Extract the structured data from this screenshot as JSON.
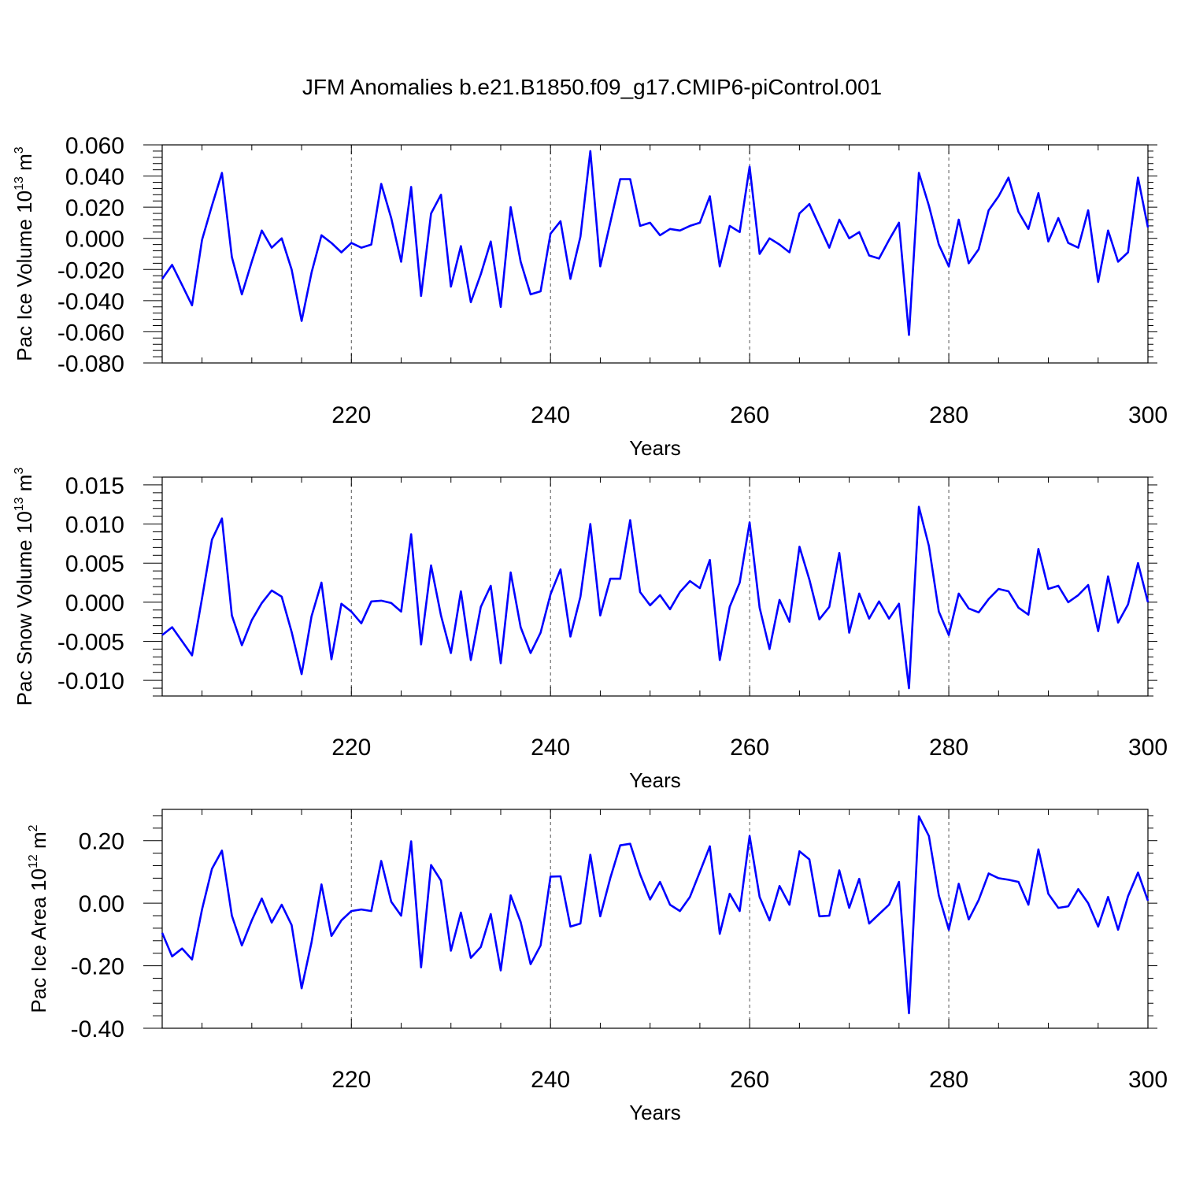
{
  "figure": {
    "title": "JFM Anomalies b.e21.B1850.f09_g17.CMIP6-piControl.001",
    "series_color": "#0000ff"
  },
  "chart_data": [
    {
      "type": "line",
      "name": "pac-ice-volume",
      "ylabel": "Pac Ice Volume 10",
      "ylabel_sup": "13",
      "ylabel_unit": " m",
      "ylabel_unit_sup": "3",
      "xlabel": "Years",
      "xlim": [
        201,
        300
      ],
      "ylim": [
        -0.08,
        0.06
      ],
      "x_ticks": [
        220,
        240,
        260,
        280,
        300
      ],
      "x_tick_labels": [
        "220",
        "240",
        "260",
        "280",
        "300"
      ],
      "y_ticks": [
        0.06,
        0.04,
        0.02,
        0.0,
        -0.02,
        -0.04,
        -0.06,
        -0.08
      ],
      "y_tick_labels": [
        "0.060",
        "0.040",
        "0.020",
        "0.000",
        "-0.020",
        "-0.040",
        "-0.060",
        "-0.080"
      ],
      "x_start": 201,
      "values": [
        -0.026,
        -0.017,
        -0.03,
        -0.043,
        -0.001,
        0.021,
        0.042,
        -0.012,
        -0.036,
        -0.015,
        0.005,
        -0.006,
        0.0,
        -0.02,
        -0.053,
        -0.022,
        0.002,
        -0.003,
        -0.009,
        -0.003,
        -0.006,
        -0.004,
        0.035,
        0.013,
        -0.015,
        0.033,
        -0.037,
        0.016,
        0.028,
        -0.031,
        -0.005,
        -0.041,
        -0.023,
        -0.002,
        -0.044,
        0.02,
        -0.015,
        -0.036,
        -0.034,
        0.003,
        0.011,
        -0.026,
        0.001,
        0.056,
        -0.018,
        0.01,
        0.038,
        0.038,
        0.008,
        0.01,
        0.002,
        0.006,
        0.005,
        0.008,
        0.01,
        0.027,
        -0.018,
        0.008,
        0.004,
        0.046,
        -0.01,
        0.0,
        -0.004,
        -0.009,
        0.016,
        0.022,
        0.008,
        -0.006,
        0.012,
        0.0,
        0.004,
        -0.011,
        -0.013,
        -0.001,
        0.01,
        -0.062,
        0.042,
        0.021,
        -0.004,
        -0.018,
        0.012,
        -0.016,
        -0.007,
        0.018,
        0.027,
        0.039,
        0.017,
        0.006,
        0.029,
        -0.002,
        0.013,
        -0.003,
        -0.006,
        0.018,
        -0.028,
        0.005,
        -0.015,
        -0.009,
        0.039,
        0.007
      ]
    },
    {
      "type": "line",
      "name": "pac-snow-volume",
      "ylabel": "Pac Snow Volume 10",
      "ylabel_sup": "13",
      "ylabel_unit": " m",
      "ylabel_unit_sup": "3",
      "xlabel": "Years",
      "xlim": [
        201,
        300
      ],
      "ylim": [
        -0.012,
        0.016
      ],
      "x_ticks": [
        220,
        240,
        260,
        280,
        300
      ],
      "x_tick_labels": [
        "220",
        "240",
        "260",
        "280",
        "300"
      ],
      "y_ticks": [
        0.015,
        0.01,
        0.005,
        0.0,
        -0.005,
        -0.01
      ],
      "y_tick_labels": [
        "0.015",
        "0.010",
        "0.005",
        "0.000",
        "-0.005",
        "-0.010"
      ],
      "x_start": 201,
      "values": [
        -0.0042,
        -0.0032,
        -0.005,
        -0.0068,
        0.0005,
        0.008,
        0.0107,
        -0.0017,
        -0.0055,
        -0.0023,
        -0.0001,
        0.0015,
        0.0007,
        -0.0038,
        -0.0092,
        -0.0018,
        0.0025,
        -0.0073,
        -0.0002,
        -0.0012,
        -0.0027,
        0.0001,
        0.0002,
        -0.0001,
        -0.0012,
        0.0087,
        -0.0054,
        0.0047,
        -0.0017,
        -0.0065,
        0.0014,
        -0.0074,
        -0.0006,
        0.0021,
        -0.0078,
        0.0038,
        -0.0032,
        -0.0065,
        -0.0039,
        0.001,
        0.0042,
        -0.0044,
        0.0007,
        0.01,
        -0.0017,
        0.003,
        0.003,
        0.0105,
        0.0013,
        -0.0004,
        0.0009,
        -0.0009,
        0.0013,
        0.0027,
        0.0018,
        0.0054,
        -0.0074,
        -0.0006,
        0.0025,
        0.0102,
        -0.0007,
        -0.006,
        0.0003,
        -0.0025,
        0.0071,
        0.0029,
        -0.0022,
        -0.0006,
        0.0063,
        -0.0039,
        0.0011,
        -0.0021,
        0.0001,
        -0.0021,
        -0.0002,
        -0.011,
        0.0122,
        0.0072,
        -0.0012,
        -0.0042,
        0.0011,
        -0.0008,
        -0.0013,
        0.0004,
        0.0017,
        0.0014,
        -0.0007,
        -0.0016,
        0.0068,
        0.0017,
        0.0021,
        0.0,
        0.0009,
        0.0022,
        -0.0037,
        0.0033,
        -0.0026,
        -0.0003,
        0.005,
        0.0
      ]
    },
    {
      "type": "line",
      "name": "pac-ice-area",
      "ylabel": "Pac Ice Area 10",
      "ylabel_sup": "12",
      "ylabel_unit": " m",
      "ylabel_unit_sup": "2",
      "xlabel": "Years",
      "xlim": [
        201,
        300
      ],
      "ylim": [
        -0.4,
        0.3
      ],
      "x_ticks": [
        220,
        240,
        260,
        280,
        300
      ],
      "x_tick_labels": [
        "220",
        "240",
        "260",
        "280",
        "300"
      ],
      "y_ticks": [
        0.2,
        0.0,
        -0.2,
        -0.4
      ],
      "y_tick_labels": [
        "0.20",
        "0.00",
        "-0.20",
        "-0.40"
      ],
      "x_start": 201,
      "values": [
        -0.095,
        -0.17,
        -0.145,
        -0.18,
        -0.02,
        0.11,
        0.168,
        -0.04,
        -0.135,
        -0.055,
        0.015,
        -0.062,
        -0.005,
        -0.07,
        -0.272,
        -0.125,
        0.06,
        -0.105,
        -0.055,
        -0.025,
        -0.02,
        -0.025,
        0.135,
        0.005,
        -0.04,
        0.198,
        -0.205,
        0.122,
        0.072,
        -0.152,
        -0.03,
        -0.175,
        -0.14,
        -0.035,
        -0.215,
        0.025,
        -0.06,
        -0.195,
        -0.135,
        0.085,
        0.086,
        -0.075,
        -0.065,
        0.155,
        -0.042,
        0.08,
        0.185,
        0.19,
        0.092,
        0.012,
        0.068,
        -0.005,
        -0.025,
        0.02,
        0.1,
        0.182,
        -0.098,
        0.03,
        -0.025,
        0.215,
        0.02,
        -0.055,
        0.055,
        -0.005,
        0.166,
        0.14,
        -0.042,
        -0.04,
        0.105,
        -0.015,
        0.078,
        -0.065,
        -0.035,
        -0.005,
        0.068,
        -0.352,
        0.278,
        0.215,
        0.025,
        -0.085,
        0.062,
        -0.052,
        0.01,
        0.095,
        0.08,
        0.075,
        0.068,
        -0.005,
        0.172,
        0.03,
        -0.015,
        -0.01,
        0.045,
        0.0,
        -0.075,
        0.02,
        -0.085,
        0.022,
        0.098,
        0.008
      ]
    }
  ]
}
